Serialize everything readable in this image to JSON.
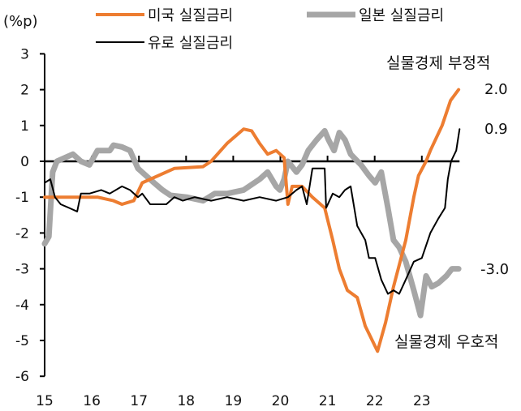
{
  "chart_data": {
    "type": "line",
    "title": "",
    "ylabel": "(%p)",
    "xlabel": "",
    "ylim": [
      -6,
      3
    ],
    "xlim": [
      15,
      24
    ],
    "yticks": [
      3,
      2,
      1,
      0,
      -1,
      -2,
      -3,
      -4,
      -5,
      -6
    ],
    "xticks": [
      "15",
      "16",
      "17",
      "18",
      "19",
      "20",
      "21",
      "22",
      "23"
    ],
    "grid": false,
    "legend_placement": "top",
    "series": [
      {
        "name": "미국 실질금리",
        "color": "#ED7D31",
        "width": 4,
        "x": [
          15.0,
          15.77,
          16.12,
          16.46,
          16.64,
          16.89,
          17.07,
          17.75,
          18.36,
          18.53,
          18.87,
          19.22,
          19.39,
          19.56,
          19.73,
          19.91,
          20.08,
          20.16,
          20.25,
          20.46,
          20.68,
          20.94,
          21.11,
          21.25,
          21.42,
          21.63,
          21.8,
          22.06,
          22.23,
          22.4,
          22.66,
          22.83,
          22.93,
          23.09,
          23.18,
          23.43,
          23.61,
          23.78
        ],
        "y": [
          -1.0,
          -1.0,
          -1.0,
          -1.1,
          -1.2,
          -1.1,
          -0.6,
          -0.2,
          -0.15,
          0.0,
          0.5,
          0.9,
          0.85,
          0.5,
          0.2,
          0.3,
          0.1,
          -1.2,
          -0.7,
          -0.7,
          -1.0,
          -1.3,
          -2.2,
          -3.0,
          -3.6,
          -3.8,
          -4.6,
          -5.3,
          -4.5,
          -3.5,
          -2.2,
          -1.0,
          -0.4,
          0.0,
          0.3,
          1.0,
          1.7,
          2.0
        ]
      },
      {
        "name": "일본 실질금리",
        "color": "#A6A6A6",
        "width": 7,
        "x": [
          15.0,
          15.09,
          15.17,
          15.26,
          15.43,
          15.6,
          15.77,
          15.95,
          16.12,
          16.38,
          16.46,
          16.64,
          16.81,
          16.98,
          17.15,
          17.32,
          17.5,
          17.67,
          18.01,
          18.36,
          18.61,
          18.87,
          19.22,
          19.56,
          19.73,
          19.91,
          19.99,
          20.08,
          20.16,
          20.34,
          20.46,
          20.59,
          20.77,
          20.94,
          21.02,
          21.14,
          21.25,
          21.37,
          21.49,
          21.71,
          21.88,
          22.01,
          22.14,
          22.28,
          22.4,
          22.52,
          22.66,
          22.83,
          22.97,
          23.09,
          23.21,
          23.35,
          23.52,
          23.64,
          23.78
        ],
        "y": [
          -2.3,
          -2.1,
          -0.3,
          0.0,
          0.1,
          0.2,
          0.0,
          -0.1,
          0.3,
          0.3,
          0.45,
          0.4,
          0.3,
          -0.2,
          -0.4,
          -0.6,
          -0.8,
          -0.95,
          -1.0,
          -1.1,
          -0.9,
          -0.9,
          -0.8,
          -0.5,
          -0.3,
          -0.7,
          -0.8,
          -0.5,
          0.0,
          -0.3,
          -0.1,
          0.3,
          0.6,
          0.85,
          0.6,
          0.3,
          0.8,
          0.6,
          0.2,
          -0.1,
          -0.4,
          -0.6,
          -0.3,
          -1.3,
          -2.2,
          -2.4,
          -2.8,
          -3.6,
          -4.3,
          -3.2,
          -3.5,
          -3.4,
          -3.2,
          -3.0,
          -3.0
        ]
      },
      {
        "name": "유로 실질금리",
        "color": "#000000",
        "width": 2,
        "x": [
          15.0,
          15.12,
          15.22,
          15.34,
          15.52,
          15.69,
          15.77,
          15.95,
          16.2,
          16.38,
          16.64,
          16.81,
          16.98,
          17.07,
          17.24,
          17.58,
          17.75,
          17.93,
          18.18,
          18.53,
          18.87,
          19.22,
          19.56,
          19.91,
          20.16,
          20.34,
          20.46,
          20.56,
          20.68,
          20.94,
          20.97,
          21.11,
          21.25,
          21.37,
          21.49,
          21.63,
          21.8,
          21.88,
          22.01,
          22.14,
          22.28,
          22.4,
          22.52,
          22.66,
          22.83,
          23.0,
          23.18,
          23.35,
          23.49,
          23.55,
          23.62,
          23.73,
          23.8
        ],
        "y": [
          -0.6,
          -0.5,
          -1.0,
          -1.2,
          -1.3,
          -1.4,
          -0.9,
          -0.9,
          -0.8,
          -0.9,
          -0.7,
          -0.8,
          -1.0,
          -0.9,
          -1.2,
          -1.2,
          -1.0,
          -1.1,
          -1.0,
          -1.1,
          -1.0,
          -1.1,
          -1.0,
          -1.1,
          -1.0,
          -0.8,
          -0.7,
          -1.2,
          -0.2,
          -0.2,
          -1.3,
          -0.9,
          -1.0,
          -0.8,
          -0.7,
          -1.8,
          -2.2,
          -2.7,
          -2.7,
          -3.3,
          -3.7,
          -3.6,
          -3.7,
          -3.3,
          -2.8,
          -2.7,
          -2.0,
          -1.6,
          -1.3,
          -0.5,
          0.0,
          0.3,
          0.9
        ]
      }
    ],
    "end_labels": [
      "2.0",
      "0.9",
      "-3.0"
    ],
    "annotations": [
      "실물경제 부정적",
      "실물경제 우호적"
    ]
  }
}
